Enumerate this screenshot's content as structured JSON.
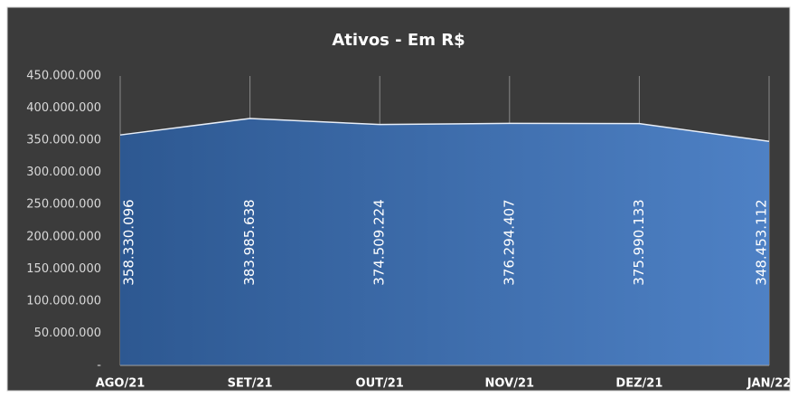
{
  "chart_data": {
    "type": "area",
    "title": "Ativos - Em R$",
    "categories": [
      "AGO/21",
      "SET/21",
      "OUT/21",
      "NOV/21",
      "DEZ/21",
      "JAN/22"
    ],
    "values": [
      358330096,
      383985638,
      374509224,
      376294407,
      375990133,
      348453112
    ],
    "value_labels": [
      "358.330.096",
      "383.985.638",
      "374.509.224",
      "376.294.407",
      "375.990.133",
      "348.453.112"
    ],
    "colors": [
      "#2d5891",
      "#4e81c5"
    ],
    "ylim": [
      0,
      450000000
    ],
    "yticks": [
      {
        "value": 0,
        "label": "-"
      },
      {
        "value": 50000000,
        "label": "50.000.000"
      },
      {
        "value": 100000000,
        "label": "100.000.000"
      },
      {
        "value": 150000000,
        "label": "150.000.000"
      },
      {
        "value": 200000000,
        "label": "200.000.000"
      },
      {
        "value": 250000000,
        "label": "250.000.000"
      },
      {
        "value": 300000000,
        "label": "300.000.000"
      },
      {
        "value": 350000000,
        "label": "350.000.000"
      },
      {
        "value": 400000000,
        "label": "400.000.000"
      },
      {
        "value": 450000000,
        "label": "450.000.000"
      }
    ],
    "grid": "x"
  }
}
